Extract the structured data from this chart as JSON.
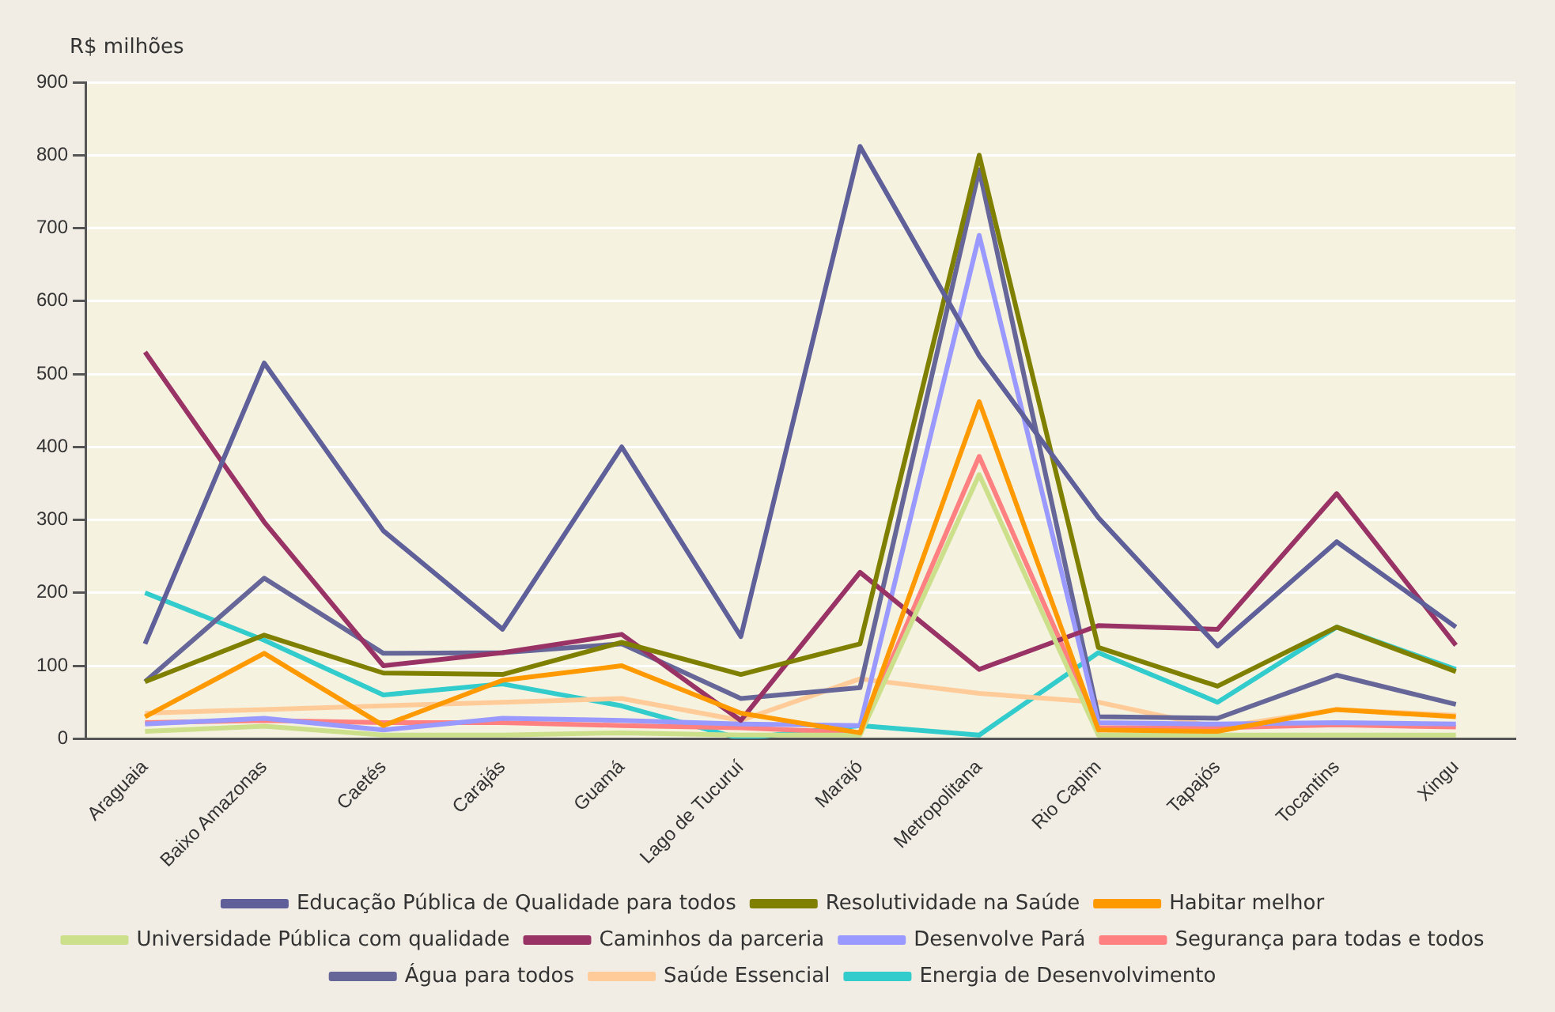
{
  "chart_data": {
    "type": "line",
    "ylabel": "R$ milhões",
    "categories": [
      "Araguaia",
      "Baixo Amazonas",
      "Caetés",
      "Carajás",
      "Guamá",
      "Lago de Tucuruí",
      "Marajó",
      "Metropolitana",
      "Rio Capim",
      "Tapajós",
      "Tocantins",
      "Xingu"
    ],
    "ylim": [
      0,
      900
    ],
    "yticks": [
      0,
      100,
      200,
      300,
      400,
      500,
      600,
      700,
      800,
      900
    ],
    "grid": "y",
    "legend": "bottom",
    "marker": "none",
    "line_style": "solid",
    "series": [
      {
        "name": "Educação Pública de Qualidade para todos",
        "color": "#5f5f99",
        "values": [
          130,
          515,
          285,
          150,
          400,
          140,
          812,
          525,
          303,
          127,
          270,
          153
        ]
      },
      {
        "name": "Resolutividade na Saúde",
        "color": "#808000",
        "values": [
          78,
          142,
          90,
          88,
          132,
          88,
          130,
          800,
          125,
          72,
          153,
          92
        ]
      },
      {
        "name": "Habitar melhor",
        "color": "#ff9900",
        "values": [
          30,
          117,
          18,
          80,
          100,
          35,
          8,
          462,
          12,
          10,
          40,
          30
        ]
      },
      {
        "name": "Universidade Pública com qualidade",
        "color": "#cce08c",
        "values": [
          10,
          17,
          5,
          5,
          8,
          5,
          5,
          362,
          5,
          5,
          5,
          5
        ]
      },
      {
        "name": "Caminhos da parceria",
        "color": "#993366",
        "values": [
          530,
          297,
          100,
          118,
          143,
          25,
          228,
          95,
          155,
          150,
          336,
          128
        ]
      },
      {
        "name": "Desenvolve Pará",
        "color": "#9999ff",
        "values": [
          20,
          28,
          12,
          28,
          25,
          20,
          18,
          690,
          22,
          20,
          22,
          20
        ]
      },
      {
        "name": "Segurança para todas e todos",
        "color": "#ff8080",
        "values": [
          22,
          25,
          22,
          22,
          18,
          15,
          8,
          387,
          15,
          15,
          19,
          16
        ]
      },
      {
        "name": "Água para todos",
        "color": "#666699",
        "values": [
          78,
          220,
          117,
          118,
          130,
          55,
          70,
          780,
          30,
          28,
          87,
          47
        ]
      },
      {
        "name": "Saúde Essencial",
        "color": "#ffcc99",
        "values": [
          35,
          40,
          45,
          50,
          55,
          25,
          82,
          62,
          50,
          15,
          40,
          32
        ]
      },
      {
        "name": "Energia de Desenvolvimento",
        "color": "#33cccc",
        "values": [
          200,
          135,
          60,
          75,
          45,
          0,
          18,
          5,
          118,
          50,
          153,
          95
        ]
      }
    ]
  }
}
